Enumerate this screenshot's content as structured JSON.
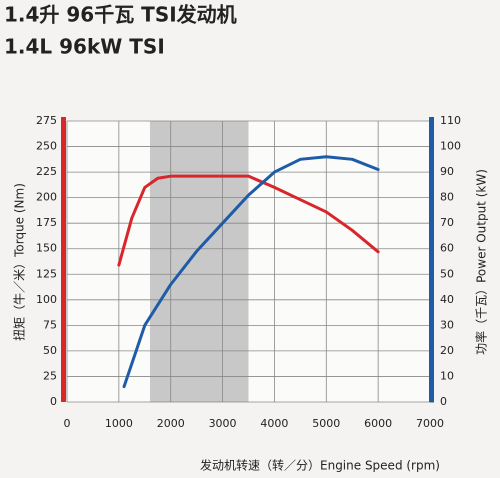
{
  "chart_data": {
    "type": "line",
    "title": "1.4升 96千瓦 TSI发动机",
    "subtitle": "1.4L 96kW TSI",
    "x_label": "发动机转速（转／分）Engine Speed (rpm)",
    "y_label": "扭矩（牛／米）Torque (Nm)",
    "y2_label": "功率（千瓦）Power Output (kW)",
    "xlim": [
      0,
      7000
    ],
    "xticks": [
      0,
      1000,
      2000,
      3000,
      4000,
      5000,
      6000,
      7000
    ],
    "ylim": [
      0,
      275
    ],
    "yticks": [
      0,
      25,
      50,
      75,
      100,
      125,
      150,
      175,
      200,
      225,
      250,
      275
    ],
    "y2lim": [
      0,
      110
    ],
    "y2ticks": [
      0,
      10,
      20,
      30,
      40,
      50,
      60,
      70,
      80,
      90,
      100,
      110
    ],
    "grid": true,
    "shaded_range": [
      1600,
      3500
    ],
    "series": [
      {
        "name": "Torque",
        "color": "#d9262b",
        "axis": "y",
        "x": [
          1000,
          1250,
          1500,
          1750,
          2000,
          2500,
          3000,
          3500,
          4000,
          4500,
          5000,
          5500,
          6000
        ],
        "values": [
          134,
          180,
          210,
          219,
          221,
          221,
          221,
          221,
          210,
          198,
          186,
          168,
          147
        ]
      },
      {
        "name": "Power Output",
        "color": "#1f5ca8",
        "axis": "y2",
        "x": [
          1100,
          1500,
          2000,
          2500,
          3000,
          3500,
          4000,
          4500,
          5000,
          5500,
          6000
        ],
        "values": [
          6,
          30,
          46,
          59,
          70,
          81,
          90,
          95,
          96,
          95,
          91
        ]
      }
    ]
  }
}
